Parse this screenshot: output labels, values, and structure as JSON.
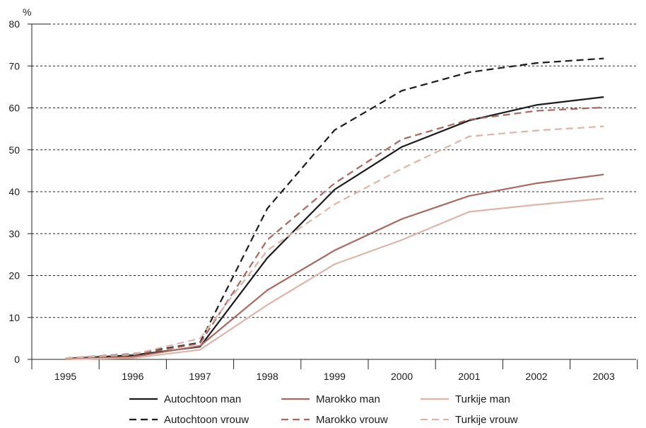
{
  "chart_data": {
    "type": "line",
    "ylabel": "%",
    "ylim": [
      0,
      80
    ],
    "yticks": [
      0,
      10,
      20,
      30,
      40,
      50,
      60,
      70,
      80
    ],
    "categories": [
      "1995",
      "1996",
      "1997",
      "1998",
      "1999",
      "2000",
      "2001",
      "2002",
      "2003"
    ],
    "grid": "horizontal dashed",
    "legend_position": "bottom",
    "series": [
      {
        "name": "Autochtoon man",
        "color": "#1a1a1a",
        "dash": "solid",
        "values": [
          0.2,
          1.0,
          3.0,
          24.2,
          40.5,
          50.7,
          57.0,
          60.7,
          62.6
        ]
      },
      {
        "name": "Marokko man",
        "color": "#a8675f",
        "dash": "solid",
        "values": [
          0.1,
          0.6,
          3.2,
          16.5,
          26.0,
          33.5,
          39.0,
          42.0,
          44.1
        ]
      },
      {
        "name": "Turkije man",
        "color": "#ddb4a8",
        "dash": "solid",
        "values": [
          0.0,
          0.3,
          2.3,
          13.0,
          22.7,
          28.5,
          35.2,
          36.9,
          38.4
        ]
      },
      {
        "name": "Autochtoon vrouw",
        "color": "#1a1a1a",
        "dash": "dashed",
        "values": [
          0.3,
          1.3,
          4.0,
          36.0,
          54.7,
          64.1,
          68.5,
          70.7,
          71.8
        ]
      },
      {
        "name": "Marokko vrouw",
        "color": "#a8675f",
        "dash": "dashed",
        "values": [
          0.2,
          1.1,
          3.8,
          28.5,
          42.0,
          52.5,
          57.2,
          59.3,
          60.1
        ]
      },
      {
        "name": "Turkije vrouw",
        "color": "#ddb4a8",
        "dash": "dashed",
        "values": [
          0.3,
          1.2,
          5.0,
          26.0,
          37.0,
          45.5,
          53.2,
          54.6,
          55.6
        ]
      }
    ]
  }
}
